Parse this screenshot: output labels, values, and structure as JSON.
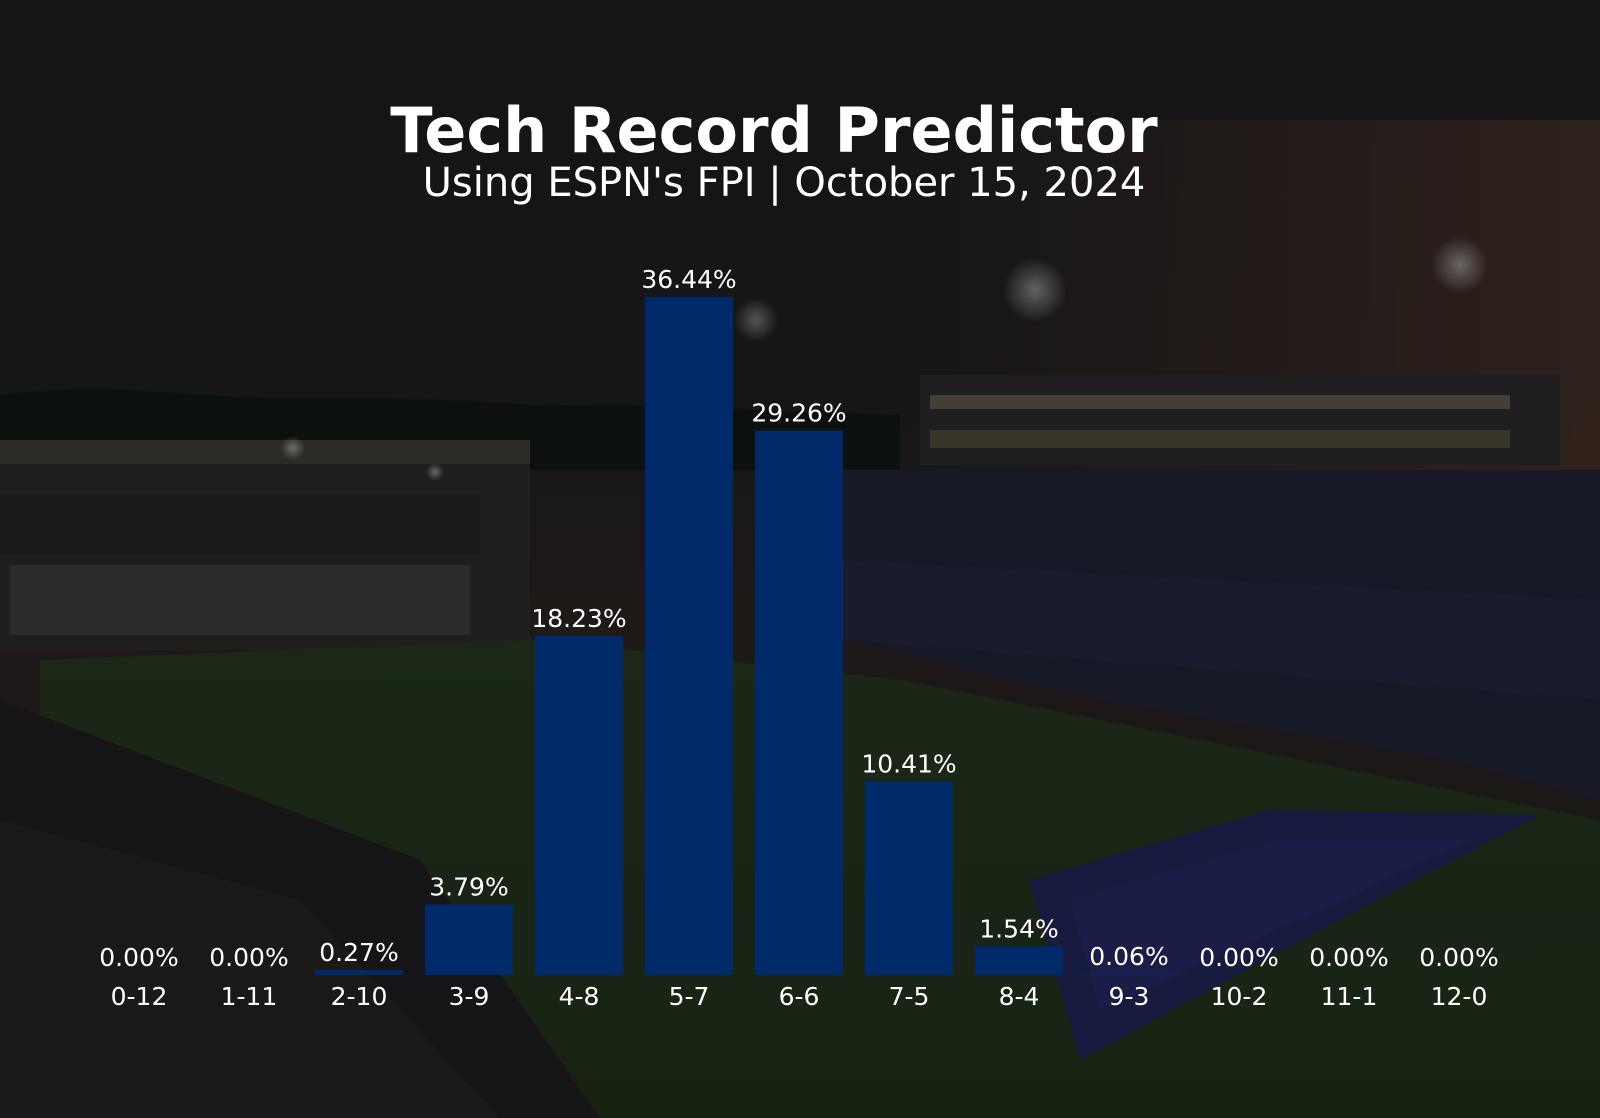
{
  "chart_data": {
    "type": "bar",
    "title": "Tech Record Predictor",
    "subtitle": "Using ESPN's FPI | October 15, 2024",
    "categories": [
      "0-12",
      "1-11",
      "2-10",
      "3-9",
      "4-8",
      "5-7",
      "6-6",
      "7-5",
      "8-4",
      "9-3",
      "10-2",
      "11-1",
      "12-0"
    ],
    "values": [
      0.0,
      0.0,
      0.27,
      3.79,
      18.23,
      36.44,
      29.26,
      10.41,
      1.54,
      0.06,
      0.0,
      0.0,
      0.0
    ],
    "value_labels": [
      "0.00%",
      "0.00%",
      "0.27%",
      "3.79%",
      "18.23%",
      "36.44%",
      "29.26%",
      "10.41%",
      "1.54%",
      "0.06%",
      "0.00%",
      "0.00%",
      "0.00%"
    ],
    "xlabel": "",
    "ylabel": "",
    "grid": false,
    "bar_color": "#012a6b"
  }
}
